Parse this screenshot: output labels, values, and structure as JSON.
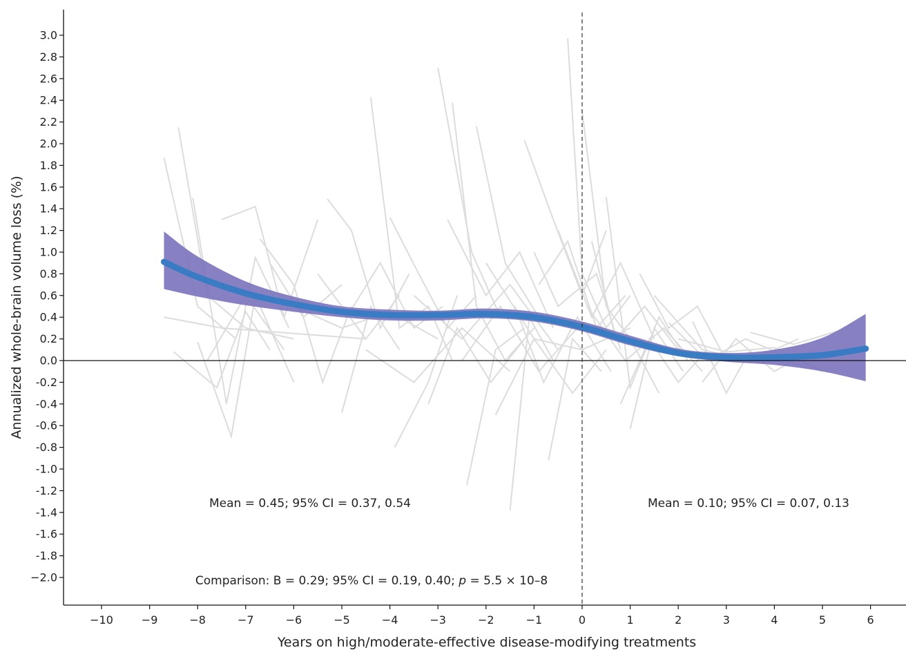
{
  "chart_data": {
    "type": "line",
    "xlabel": "Years on high/moderate-effective disease-modifying treatments",
    "ylabel": "Annualized whole-brain volume loss (%)",
    "xlim": [
      -10.8,
      6.7
    ],
    "ylim": [
      -2.25,
      3.25
    ],
    "x_ticks": [
      -10,
      -9,
      -8,
      -7,
      -6,
      -5,
      -4,
      -3,
      -2,
      -1,
      0,
      1,
      2,
      3,
      4,
      5,
      6
    ],
    "x_tick_labels": [
      "−10",
      "−9",
      "−8",
      "−7",
      "−6",
      "−5",
      "−4",
      "−3",
      "−2",
      "−1",
      "0",
      "1",
      "2",
      "3",
      "4",
      "5",
      "6"
    ],
    "y_ticks": [
      3.0,
      2.8,
      2.6,
      2.4,
      2.2,
      2.0,
      1.8,
      1.6,
      1.4,
      1.2,
      1.0,
      0.8,
      0.6,
      0.4,
      0.2,
      0.0,
      -0.2,
      -0.4,
      -0.6,
      -0.8,
      -1.0,
      -1.2,
      -1.4,
      -1.6,
      -1.8,
      -2.0
    ],
    "y_tick_labels": [
      "3.0",
      "2.8",
      "2.6",
      "2.4",
      "2.2",
      "2.0",
      "1.8",
      "1.6",
      "1.4",
      "1.2",
      "1.0",
      "0.8",
      "0.6",
      "0.4",
      "0.2",
      "0.0",
      "-0.2",
      "-0.4",
      "-0.6",
      "-0.8",
      "-1.0",
      "-1.2",
      "-1.4",
      "-1.6",
      "-1.8",
      "−2.0"
    ],
    "reference_lines": {
      "horizontal_y": 0,
      "vertical_x": 0,
      "vertical_style": "dashed"
    },
    "fit": {
      "x": [
        -8.7,
        -8.0,
        -7.0,
        -6.0,
        -5.0,
        -4.0,
        -3.0,
        -2.0,
        -1.0,
        0.0,
        1.0,
        2.0,
        3.0,
        4.0,
        5.0,
        5.9
      ],
      "y": [
        0.91,
        0.77,
        0.62,
        0.52,
        0.45,
        0.42,
        0.42,
        0.43,
        0.4,
        0.31,
        0.18,
        0.07,
        0.03,
        0.03,
        0.05,
        0.11
      ],
      "lower": [
        0.66,
        0.59,
        0.51,
        0.45,
        0.4,
        0.37,
        0.37,
        0.39,
        0.36,
        0.27,
        0.14,
        0.04,
        -0.01,
        -0.04,
        -0.1,
        -0.19
      ],
      "upper": [
        1.19,
        0.96,
        0.73,
        0.59,
        0.5,
        0.47,
        0.46,
        0.48,
        0.45,
        0.36,
        0.23,
        0.11,
        0.07,
        0.1,
        0.21,
        0.43
      ]
    },
    "individual_trajectories": [
      [
        [
          -8.7,
          1.87
        ],
        [
          -8.0,
          0.5
        ],
        [
          -7.2,
          0.2
        ]
      ],
      [
        [
          -8.4,
          2.15
        ],
        [
          -7.8,
          0.6
        ],
        [
          -7.0,
          0.3
        ],
        [
          -6.0,
          0.2
        ]
      ],
      [
        [
          -8.5,
          0.08
        ],
        [
          -7.6,
          -0.25
        ],
        [
          -7.0,
          0.45
        ],
        [
          -6.5,
          0.1
        ]
      ],
      [
        [
          -8.1,
          1.5
        ],
        [
          -7.4,
          -0.4
        ],
        [
          -6.8,
          0.95
        ],
        [
          -6.1,
          0.3
        ]
      ],
      [
        [
          -8.7,
          0.4
        ],
        [
          -7.5,
          0.3
        ],
        [
          -6.0,
          0.25
        ],
        [
          -4.5,
          0.2
        ]
      ],
      [
        [
          -8.0,
          0.17
        ],
        [
          -7.3,
          -0.7
        ],
        [
          -6.8,
          0.6
        ],
        [
          -6.0,
          -0.2
        ]
      ],
      [
        [
          -7.5,
          1.3
        ],
        [
          -6.8,
          1.42
        ],
        [
          -6.2,
          0.4
        ],
        [
          -5.5,
          1.3
        ]
      ],
      [
        [
          -6.7,
          1.12
        ],
        [
          -6.0,
          0.7
        ],
        [
          -5.4,
          -0.2
        ],
        [
          -4.8,
          0.5
        ]
      ],
      [
        [
          -5.3,
          1.49
        ],
        [
          -4.8,
          1.2
        ],
        [
          -4.2,
          0.3
        ],
        [
          -3.6,
          0.8
        ]
      ],
      [
        [
          -5.0,
          -0.48
        ],
        [
          -4.4,
          0.5
        ],
        [
          -3.8,
          0.1
        ]
      ],
      [
        [
          -4.4,
          2.43
        ],
        [
          -3.8,
          0.3
        ],
        [
          -3.2,
          0.5
        ],
        [
          -2.7,
          0.0
        ]
      ],
      [
        [
          -4.0,
          1.32
        ],
        [
          -3.4,
          0.8
        ],
        [
          -2.8,
          0.3
        ],
        [
          -2.2,
          0.6
        ]
      ],
      [
        [
          -3.0,
          2.7
        ],
        [
          -2.3,
          1.0
        ],
        [
          -1.7,
          0.4
        ]
      ],
      [
        [
          -2.7,
          2.38
        ],
        [
          -2.2,
          0.5
        ],
        [
          -1.6,
          0.0
        ],
        [
          -1.0,
          0.3
        ]
      ],
      [
        [
          -2.2,
          2.16
        ],
        [
          -1.6,
          0.9
        ],
        [
          -0.9,
          0.4
        ]
      ],
      [
        [
          -1.2,
          2.03
        ],
        [
          -0.6,
          1.3
        ],
        [
          0.0,
          0.6
        ],
        [
          0.5,
          1.2
        ]
      ],
      [
        [
          -1.5,
          -1.38
        ],
        [
          -1.1,
          0.4
        ],
        [
          -0.6,
          0.0
        ]
      ],
      [
        [
          -2.4,
          -1.15
        ],
        [
          -1.8,
          0.1
        ],
        [
          -1.2,
          0.3
        ]
      ],
      [
        [
          -3.9,
          -0.8
        ],
        [
          -3.2,
          -0.2
        ],
        [
          -2.6,
          0.6
        ]
      ],
      [
        [
          -0.3,
          2.97
        ],
        [
          0.0,
          0.8
        ],
        [
          0.5,
          0.3
        ],
        [
          1.0,
          0.6
        ]
      ],
      [
        [
          0.0,
          2.3
        ],
        [
          0.5,
          0.5
        ],
        [
          1.0,
          0.2
        ],
        [
          1.6,
          -0.3
        ]
      ],
      [
        [
          -0.7,
          -0.92
        ],
        [
          -0.2,
          0.2
        ],
        [
          0.4,
          -0.1
        ]
      ],
      [
        [
          0.5,
          1.51
        ],
        [
          1.0,
          -0.25
        ],
        [
          1.6,
          0.4
        ],
        [
          2.2,
          0.0
        ]
      ],
      [
        [
          1.0,
          -0.63
        ],
        [
          1.5,
          0.3
        ],
        [
          2.1,
          -0.1
        ]
      ],
      [
        [
          2.3,
          0.36
        ],
        [
          3.0,
          -0.3
        ],
        [
          3.5,
          0.1
        ]
      ],
      [
        [
          1.5,
          0.6
        ],
        [
          2.5,
          0.1
        ],
        [
          3.5,
          0.0
        ],
        [
          4.5,
          0.2
        ]
      ],
      [
        [
          3.5,
          0.26
        ],
        [
          4.4,
          0.15
        ],
        [
          5.3,
          0.27
        ]
      ],
      [
        [
          2.0,
          0.2
        ],
        [
          3.0,
          0.08
        ],
        [
          4.0,
          0.12
        ],
        [
          5.0,
          -0.1
        ]
      ],
      [
        [
          -6.0,
          0.5
        ],
        [
          -5.0,
          0.3
        ],
        [
          -4.0,
          0.45
        ],
        [
          -3.0,
          0.2
        ]
      ],
      [
        [
          -3.5,
          0.6
        ],
        [
          -2.5,
          0.2
        ],
        [
          -1.5,
          0.7
        ],
        [
          -0.5,
          0.1
        ]
      ],
      [
        [
          -2.0,
          0.9
        ],
        [
          -1.0,
          0.2
        ],
        [
          0.0,
          0.1
        ],
        [
          1.0,
          0.3
        ]
      ],
      [
        [
          -1.0,
          1.0
        ],
        [
          -0.5,
          0.5
        ],
        [
          0.3,
          0.8
        ],
        [
          0.8,
          0.1
        ]
      ],
      [
        [
          -0.5,
          1.2
        ],
        [
          0.2,
          0.4
        ],
        [
          0.8,
          0.9
        ],
        [
          1.5,
          0.2
        ]
      ],
      [
        [
          0.2,
          1.1
        ],
        [
          0.7,
          0.2
        ],
        [
          1.3,
          0.5
        ],
        [
          2.0,
          0.1
        ]
      ],
      [
        [
          -4.5,
          0.1
        ],
        [
          -3.5,
          -0.2
        ],
        [
          -2.5,
          0.3
        ],
        [
          -1.5,
          -0.1
        ]
      ],
      [
        [
          -1.8,
          -0.5
        ],
        [
          -1.0,
          0.2
        ],
        [
          -0.2,
          -0.3
        ],
        [
          0.5,
          0.1
        ]
      ],
      [
        [
          0.8,
          -0.4
        ],
        [
          1.4,
          0.2
        ],
        [
          2.0,
          -0.2
        ],
        [
          2.6,
          0.1
        ]
      ],
      [
        [
          -5.5,
          0.8
        ],
        [
          -4.5,
          0.2
        ],
        [
          -3.8,
          0.6
        ]
      ],
      [
        [
          -6.5,
          0.9
        ],
        [
          -5.8,
          0.4
        ],
        [
          -5.0,
          0.7
        ]
      ],
      [
        [
          -2.8,
          1.3
        ],
        [
          -2.0,
          0.6
        ],
        [
          -1.3,
          1.0
        ],
        [
          -0.6,
          0.3
        ]
      ],
      [
        [
          1.2,
          0.8
        ],
        [
          1.8,
          0.3
        ],
        [
          2.4,
          0.5
        ],
        [
          3.0,
          0.0
        ]
      ],
      [
        [
          2.5,
          -0.2
        ],
        [
          3.2,
          0.2
        ],
        [
          4.0,
          -0.1
        ],
        [
          4.8,
          0.1
        ]
      ],
      [
        [
          -7.8,
          0.0
        ],
        [
          -7.0,
          0.6
        ],
        [
          -6.2,
          0.1
        ]
      ],
      [
        [
          -4.9,
          0.4
        ],
        [
          -4.2,
          0.9
        ],
        [
          -3.5,
          0.3
        ],
        [
          -2.9,
          0.5
        ]
      ],
      [
        [
          -1.4,
          0.5
        ],
        [
          -0.8,
          -0.2
        ],
        [
          -0.1,
          0.4
        ],
        [
          0.6,
          -0.1
        ]
      ],
      [
        [
          0.1,
          0.5
        ],
        [
          0.9,
          0.0
        ],
        [
          1.7,
          0.3
        ],
        [
          2.5,
          -0.1
        ]
      ],
      [
        [
          -3.2,
          -0.4
        ],
        [
          -2.6,
          0.3
        ],
        [
          -1.9,
          -0.2
        ],
        [
          -1.2,
          0.2
        ]
      ],
      [
        [
          1.8,
          0.35
        ],
        [
          2.6,
          0.0
        ],
        [
          3.4,
          0.2
        ],
        [
          4.2,
          0.05
        ]
      ],
      [
        [
          -0.9,
          0.7
        ],
        [
          -0.3,
          1.1
        ],
        [
          0.3,
          0.3
        ],
        [
          0.9,
          0.6
        ]
      ],
      [
        [
          -2.5,
          0.0
        ],
        [
          -1.7,
          0.5
        ],
        [
          -0.9,
          -0.1
        ],
        [
          -0.1,
          0.3
        ]
      ]
    ]
  },
  "annotations": {
    "left_mean": "Mean = 0.45; 95% CI = 0.37, 0.54",
    "right_mean": "Mean = 0.10; 95% CI = 0.07, 0.13",
    "comparison_prefix": "Comparison: B = 0.29; 95% CI = 0.19, 0.40; ",
    "comparison_p": "p",
    "comparison_suffix": " = 5.5 × 10–8"
  },
  "colors": {
    "trajectory": "#dcdcdc",
    "fit_line": "#3a7cc4",
    "ci_band": "#7a72bd",
    "axis": "#111111"
  }
}
